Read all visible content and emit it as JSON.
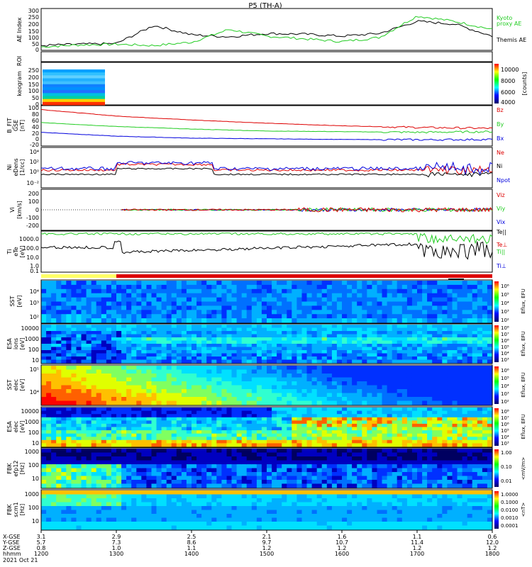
{
  "title": "P5 (TH-A)",
  "date_label": "2021 Oct 21",
  "bottom_axis": {
    "row_labels": [
      "X-GSE",
      "Y-GSE",
      "Z-GSE",
      "hhmm"
    ],
    "columns": [
      {
        "vals": [
          "3.1",
          "5.7",
          "0.8",
          "1200"
        ]
      },
      {
        "vals": [
          "2.9",
          "7.3",
          "1.0",
          "1300"
        ]
      },
      {
        "vals": [
          "2.5",
          "8.6",
          "1.1",
          "1400"
        ]
      },
      {
        "vals": [
          "2.1",
          "9.7",
          "1.2",
          "1500"
        ]
      },
      {
        "vals": [
          "1.6",
          "10.7",
          "1.2",
          "1600"
        ]
      },
      {
        "vals": [
          "1.1",
          "11.4",
          "1.2",
          "1700"
        ]
      },
      {
        "vals": [
          "0.6",
          "12.0",
          "1.2",
          "1800"
        ]
      }
    ]
  },
  "roi_label": "ROI",
  "colors": {
    "red": "#dd0000",
    "green": "#22cc22",
    "blue": "#0000dd",
    "black": "#000000"
  },
  "panels": {
    "ae": {
      "ylabel": "AE Index",
      "ticks": [
        "300",
        "250",
        "200",
        "150",
        "100",
        "50",
        "0"
      ],
      "legend1": "Kyoto",
      "legend2": "proxy AE",
      "legend3": "Themis AE"
    },
    "kgram": {
      "ylabel": "keogram",
      "ticks": [
        "250",
        "200",
        "150",
        "100",
        "50",
        "0"
      ],
      "cbar_ticks": [
        "10000",
        "8000",
        "6000",
        "4000"
      ],
      "cbar_label": "[counts]"
    },
    "bfield": {
      "ylabel1": "B_FIT",
      "ylabel2": "GSE",
      "ylabel3": "[nT]",
      "ticks": [
        "100",
        "80",
        "60",
        "40",
        "20",
        "0",
        "-20"
      ],
      "legend": [
        "Bz",
        "By",
        "Bx"
      ]
    },
    "density": {
      "ylabel1": "Ni",
      "ylabel2": "eDens",
      "ylabel3": "[1/cc]",
      "ticks": [
        "10⁴",
        "10²",
        "10⁰",
        "10⁻²"
      ],
      "legend": [
        "Ne",
        "Ni",
        "Npot"
      ]
    },
    "velocity": {
      "ylabel1": "Vi",
      "ylabel2": "[km/s]",
      "ticks": [
        "200",
        "100",
        "0",
        "-100",
        "-200"
      ],
      "legend": [
        "Viz",
        "Viy",
        "Vix"
      ]
    },
    "temp": {
      "ylabel1": "Ti",
      "ylabel2": "eTe",
      "ylabel3": "[eV]",
      "ticks": [
        "1000.0",
        "100.0",
        "10.0",
        "1.0",
        "0.1"
      ],
      "legend": [
        "Te||",
        "Te⊥",
        "Ti||",
        "Ti⊥"
      ]
    },
    "sst_i": {
      "ylabel1": "SST",
      "ylabel2": "[eV]",
      "ticks": [
        "10⁴",
        "10³",
        "10²"
      ],
      "cbar_ticks": [
        "10⁶",
        "10⁵",
        "10⁴",
        "10³",
        "10²"
      ],
      "cbar_label": "Eflux, EFU"
    },
    "esa_i": {
      "ylabel1": "ESA",
      "ylabel2": "ions",
      "ylabel3": "[eV]",
      "ticks": [
        "10000",
        "1000",
        "100",
        "10"
      ],
      "cbar_ticks": [
        "10⁸",
        "10⁷",
        "10⁶",
        "10⁵",
        "10⁴",
        "10³"
      ],
      "cbar_label": "Eflux, EFU"
    },
    "sst_e": {
      "ylabel1": "SST",
      "ylabel2": "elec",
      "ylabel3": "[eV]",
      "ticks": [
        "10⁵",
        "10⁴"
      ],
      "cbar_ticks": [
        "10⁶",
        "10⁵",
        "10⁴",
        "10³",
        "10²"
      ],
      "cbar_label": "Eflux, EFU"
    },
    "esa_e": {
      "ylabel1": "ESA",
      "ylabel2": "elec",
      "ylabel3": "[eV]",
      "ticks": [
        "10000",
        "1000",
        "100",
        "10"
      ],
      "cbar_ticks": [
        "10⁸",
        "10⁷",
        "10⁶",
        "10⁵",
        "10⁴",
        "10³"
      ],
      "cbar_label": "Eflux, EFU"
    },
    "fbk_e": {
      "ylabel1": "FBK",
      "ylabel2": "efp12",
      "ylabel3": "[Hz]",
      "ticks": [
        "1000",
        "100",
        "10"
      ],
      "cbar_ticks": [
        "1.00",
        "0.10",
        "0.01"
      ],
      "cbar_label": "<mV/m>"
    },
    "fbk_b": {
      "ylabel1": "FBK",
      "ylabel2": "scm1",
      "ylabel3": "[Hz]",
      "ticks": [
        "1000",
        "100",
        "10"
      ],
      "cbar_ticks": [
        "1.0000",
        "0.1000",
        "0.0100",
        "0.0010",
        "0.0001"
      ],
      "cbar_label": "<nT>"
    }
  },
  "chart_data": [
    {
      "type": "line",
      "title": "P5 (TH-A)",
      "ylabel": "AE Index",
      "ylim": [
        0,
        300
      ],
      "x": [
        "12:00",
        "12:30",
        "13:00",
        "13:30",
        "14:00",
        "14:30",
        "15:00",
        "15:30",
        "16:00",
        "16:30",
        "17:00",
        "17:30",
        "18:00"
      ],
      "series": [
        {
          "name": "Kyoto proxy AE",
          "values": [
            20,
            35,
            40,
            30,
            55,
            150,
            100,
            80,
            60,
            90,
            250,
            210,
            150
          ]
        },
        {
          "name": "Themis AE",
          "values": [
            30,
            40,
            45,
            180,
            110,
            95,
            120,
            115,
            100,
            120,
            210,
            190,
            100
          ]
        }
      ]
    },
    {
      "type": "line",
      "ylabel": "B_FIT GSE [nT]",
      "ylim": [
        -20,
        100
      ],
      "x": [
        "12:00",
        "13:00",
        "14:00",
        "15:00",
        "16:00",
        "17:00",
        "18:00"
      ],
      "series": [
        {
          "name": "Bz",
          "values": [
            90,
            70,
            58,
            48,
            40,
            35,
            32
          ]
        },
        {
          "name": "By",
          "values": [
            50,
            38,
            30,
            24,
            22,
            20,
            22
          ]
        },
        {
          "name": "Bx",
          "values": [
            20,
            8,
            2,
            0,
            -2,
            -3,
            -2
          ]
        }
      ]
    },
    {
      "type": "line",
      "ylabel": "Vi [km/s]",
      "ylim": [
        -250,
        250
      ],
      "x": [
        "12:00",
        "13:00",
        "14:00",
        "15:00",
        "16:00",
        "17:00",
        "18:00"
      ],
      "series": [
        {
          "name": "Viz",
          "values": [
            0,
            0,
            0,
            0,
            0,
            20,
            0
          ]
        }
      ]
    },
    {
      "type": "heatmap",
      "ylabel": "ESA ions [eV]",
      "ylim": [
        10,
        20000
      ],
      "x": [
        "1200",
        "1800"
      ]
    }
  ]
}
